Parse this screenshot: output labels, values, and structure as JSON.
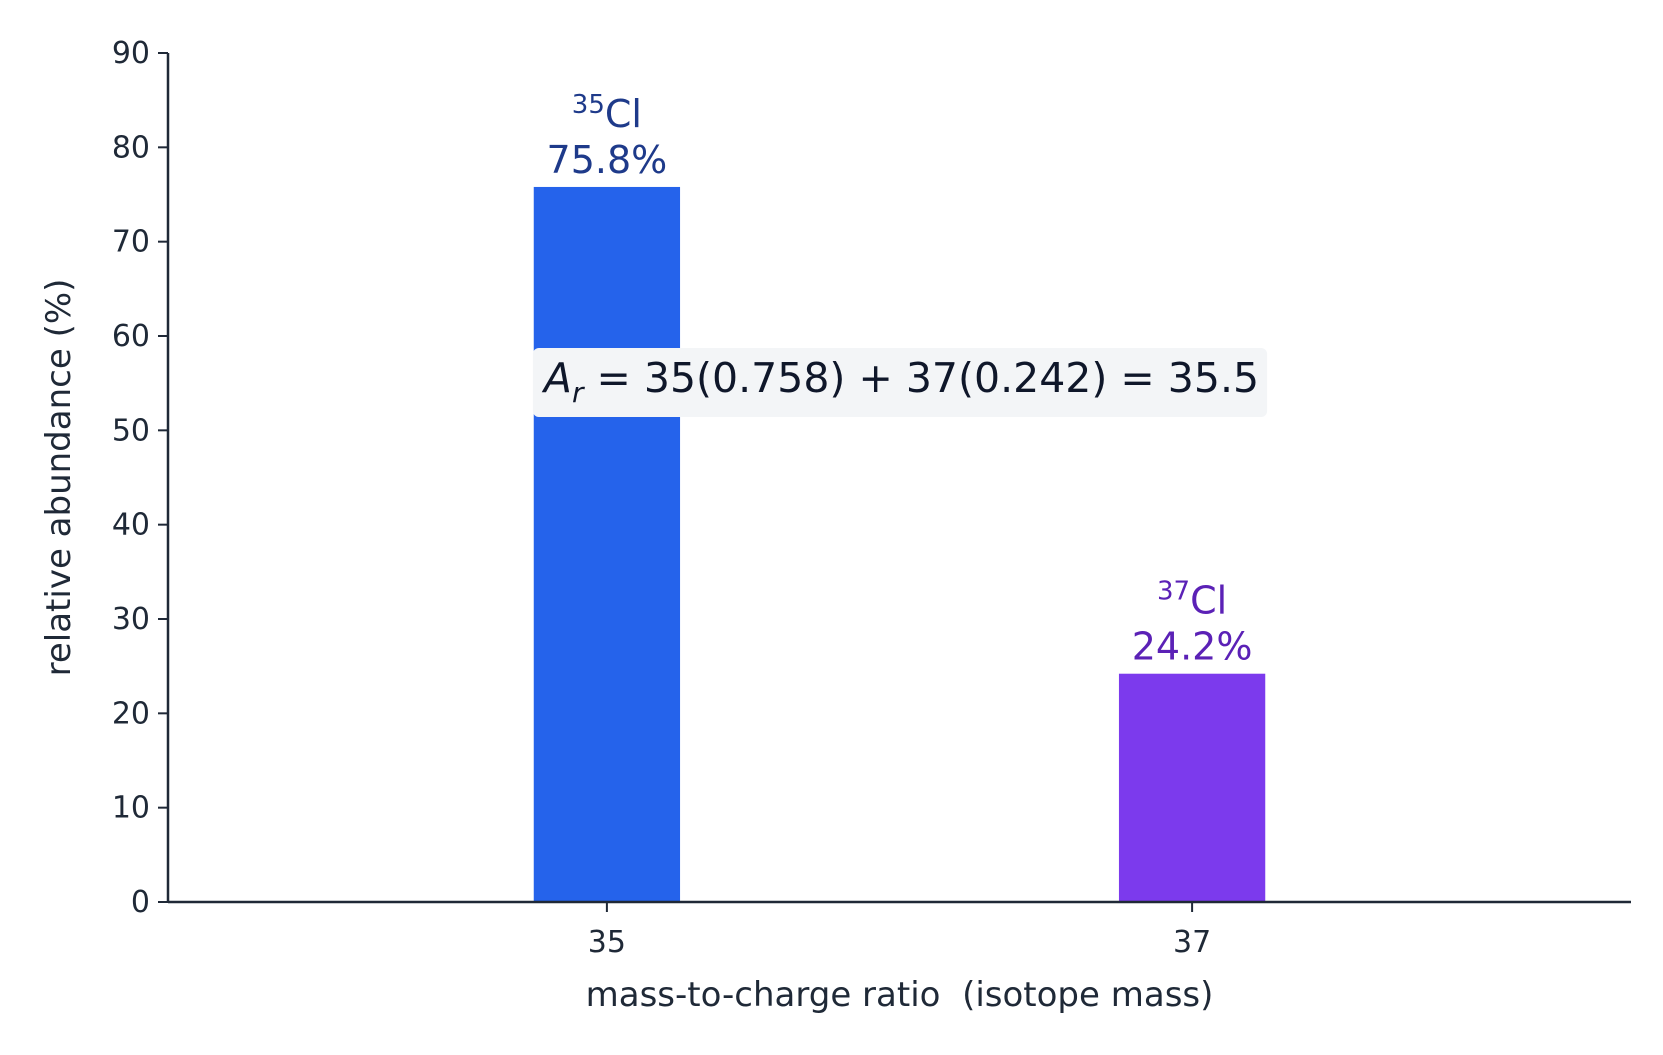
{
  "chart_data": {
    "type": "bar",
    "x_label": "mass-to-charge ratio  (isotope mass)",
    "y_label": "relative abundance (%)",
    "x": [
      35,
      37
    ],
    "values": [
      75.8,
      24.2
    ],
    "value_labels": [
      "75.8%",
      "24.2%"
    ],
    "bar_labels": [
      {
        "superscript": "35",
        "text": "Cl"
      },
      {
        "superscript": "37",
        "text": "Cl"
      }
    ],
    "colors": [
      "#2563eb",
      "#7c3aed"
    ],
    "label_colors": [
      "#1e3a8a",
      "#5b21b6"
    ],
    "bar_width": 0.5,
    "xlim": [
      33.5,
      38.5
    ],
    "xticks": [
      35,
      37
    ],
    "ylim": [
      0,
      90
    ],
    "yticks": [
      0,
      10,
      20,
      30,
      40,
      50,
      60,
      70,
      80,
      90
    ],
    "annotation": {
      "symbol": "A",
      "subscript": "r",
      "text": " = 35(0.758) + 37(0.242) = 35.5"
    }
  }
}
